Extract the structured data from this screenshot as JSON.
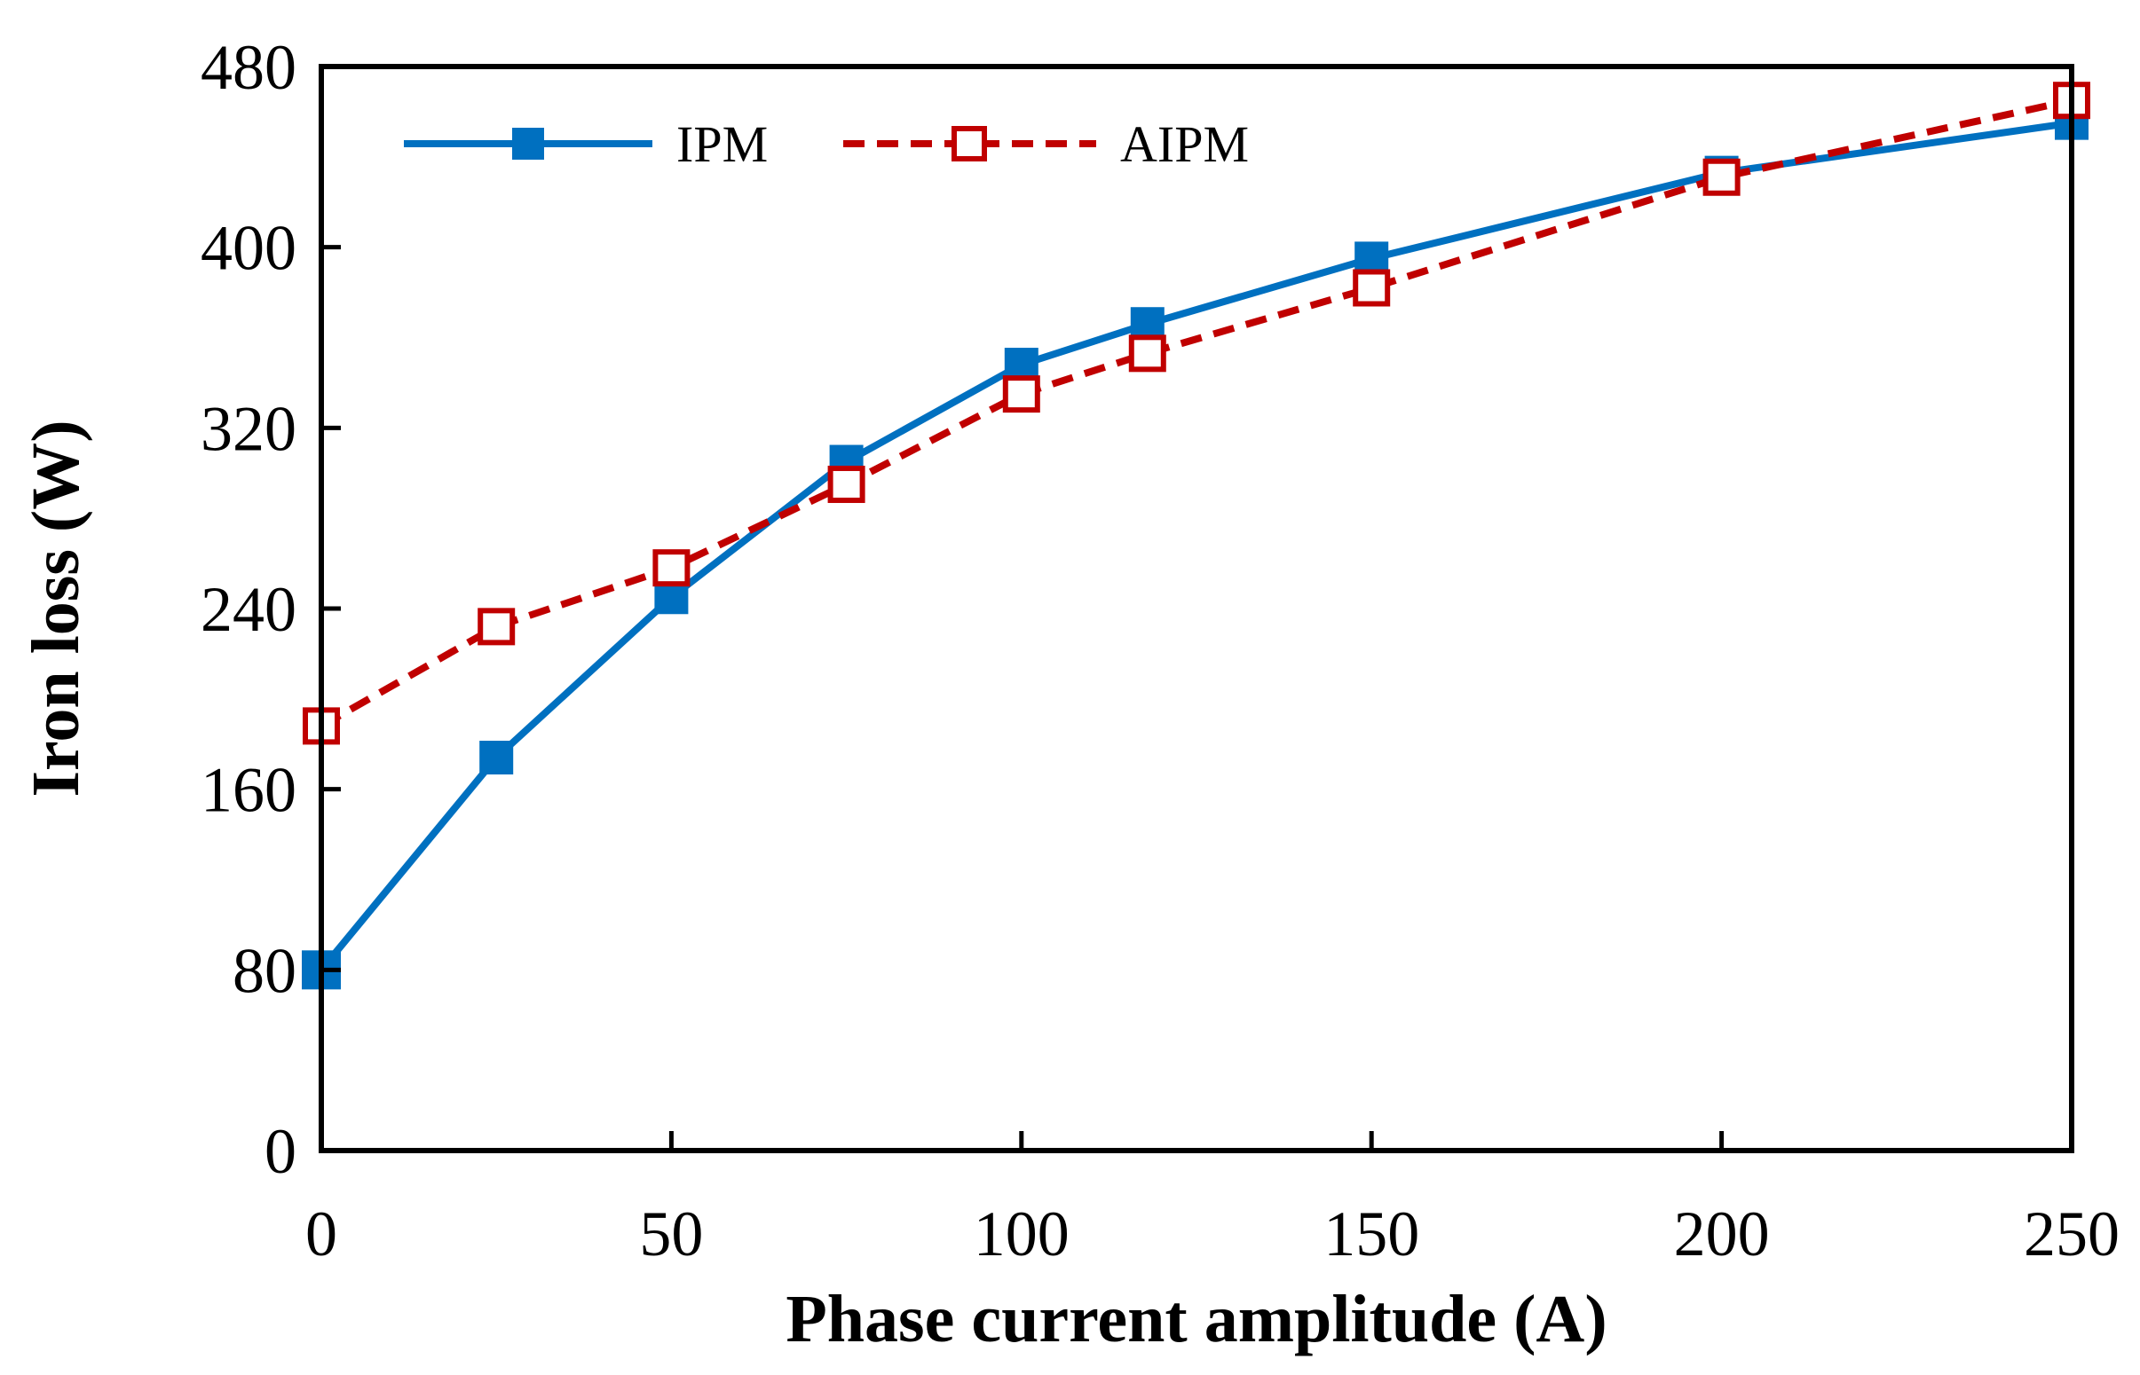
{
  "chart_data": {
    "type": "line",
    "title": "",
    "xlabel": "Phase current amplitude (A)",
    "ylabel": "Iron loss (W)",
    "xlim": [
      0,
      250
    ],
    "ylim": [
      0,
      480
    ],
    "xticks": [
      0,
      50,
      100,
      150,
      200,
      250
    ],
    "yticks": [
      0,
      80,
      160,
      240,
      320,
      400,
      480
    ],
    "grid": false,
    "legend_position": "top-left",
    "series": [
      {
        "name": "IPM",
        "color": "#0070c0",
        "line_style": "solid",
        "marker": "filled-square",
        "x": [
          0,
          25,
          50,
          75,
          100,
          118,
          150,
          200,
          250
        ],
        "y": [
          80,
          174,
          245,
          305,
          348,
          366,
          395,
          433,
          455
        ]
      },
      {
        "name": "AIPM",
        "color": "#c00000",
        "line_style": "dashed",
        "marker": "open-square",
        "x": [
          0,
          25,
          50,
          75,
          100,
          118,
          150,
          200,
          250
        ],
        "y": [
          188,
          232,
          258,
          295,
          335,
          353,
          382,
          431,
          465
        ]
      }
    ]
  }
}
